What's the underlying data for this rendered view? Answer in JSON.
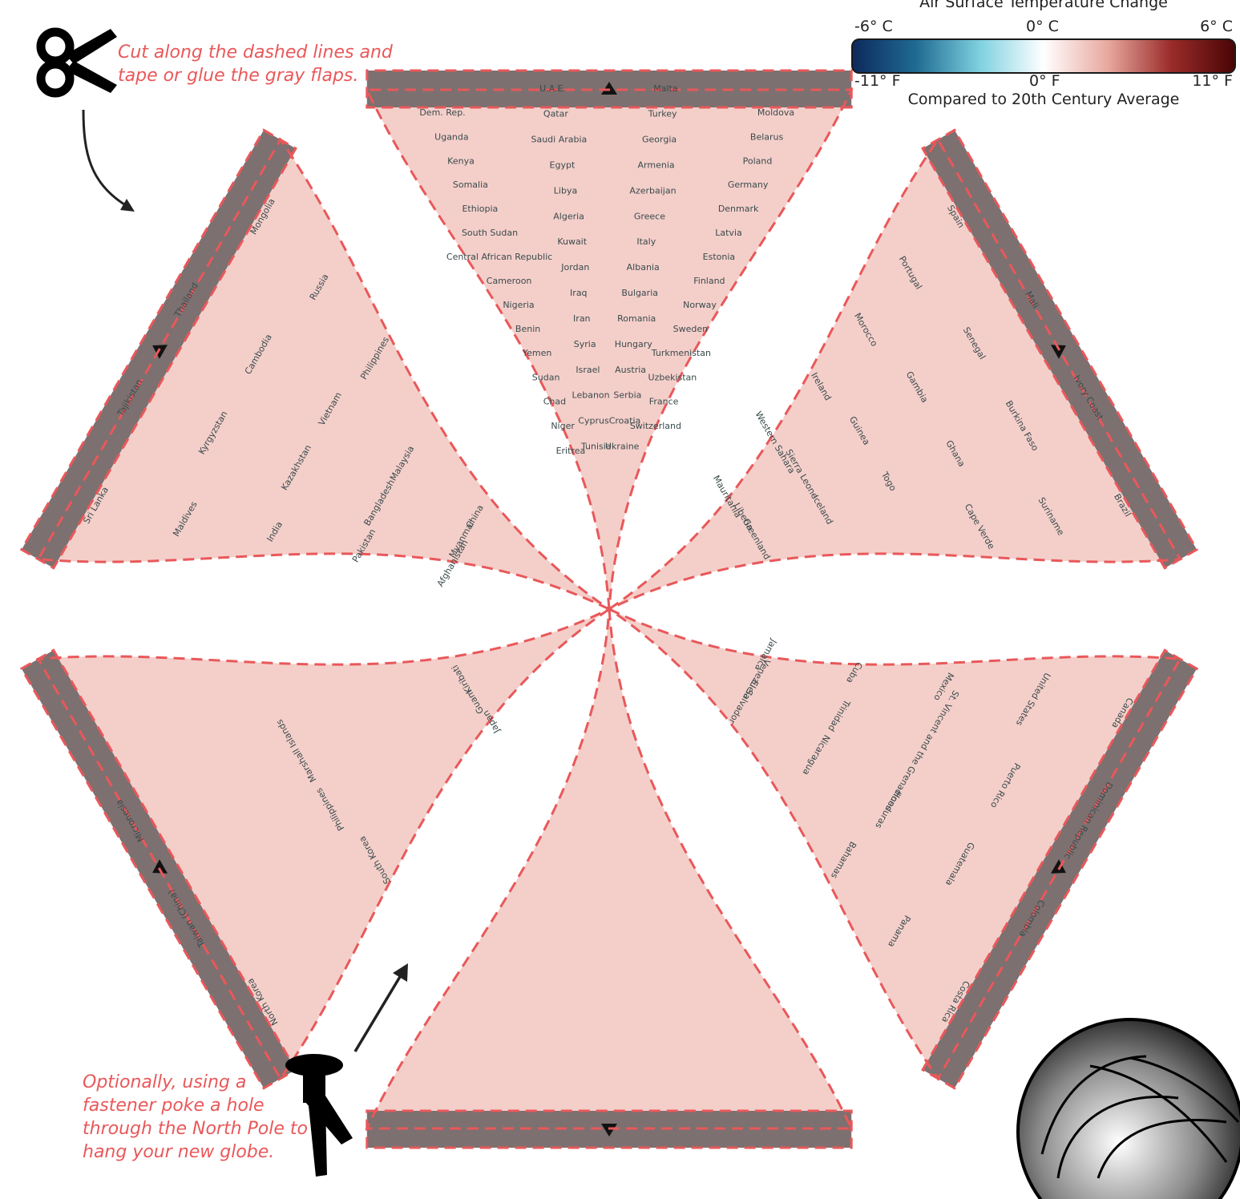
{
  "instructions": {
    "cut": "Cut along the dashed lines and tape or glue the gray flaps.",
    "hang": "Optionally, using a fastener poke a hole through the North Pole to hang your new globe."
  },
  "legend": {
    "title": "Air Surface Temperature Change",
    "celsius_min": "-6° C",
    "celsius_mid": "0° C",
    "celsius_max": "6° C",
    "fahrenheit_min": "-11° F",
    "fahrenheit_mid": "0° F",
    "fahrenheit_max": "11° F",
    "subtitle": "Compared to 20th Century Average",
    "gradient": [
      "#0d2a5c",
      "#1f6b92",
      "#7fd1e0",
      "#ffffff",
      "#e8a9a0",
      "#9a2c2a",
      "#4a0505"
    ]
  },
  "colors": {
    "cut_line": "#e9585a",
    "flap": "#7d7070",
    "hot": "#5a0707",
    "warm": "#c97a72",
    "mild": "#f4cfca",
    "cool": "#a8dde8"
  },
  "map_labels": {
    "africa": [
      "Dem. Rep.",
      "Uganda",
      "Kenya",
      "Somalia",
      "Ethiopia",
      "South Sudan",
      "Central African Republic",
      "Cameroon",
      "Nigeria",
      "Benin",
      "Yemen",
      "Sudan",
      "Chad",
      "Niger",
      "Eritrea",
      "U.A.E.",
      "Qatar",
      "Saudi Arabia",
      "Egypt",
      "Libya",
      "Algeria",
      "Kuwait",
      "Jordan",
      "Iraq",
      "Iran",
      "Syria",
      "Israel",
      "Lebanon",
      "Cyprus",
      "Tunisia",
      "Malta",
      "Turkey",
      "Georgia",
      "Armenia",
      "Azerbaijan",
      "Greece",
      "Italy",
      "Albania",
      "Bulgaria",
      "Romania",
      "Hungary",
      "Austria",
      "Serbia",
      "Croatia",
      "Ukraine",
      "Moldova",
      "Belarus",
      "Poland",
      "Germany",
      "Denmark",
      "Latvia",
      "Estonia",
      "Finland",
      "Norway",
      "Sweden",
      "Turkmenistan",
      "Uzbekistan",
      "France",
      "Switzerland"
    ],
    "asia": [
      "Sri Lanka",
      "Maldives",
      "India",
      "Pakistan",
      "Afghanistan",
      "Tajikistan",
      "Kyrgyzstan",
      "Kazakhstan",
      "Bangladesh",
      "Myanmar",
      "Thailand",
      "Cambodia",
      "Vietnam",
      "Malaysia",
      "China",
      "Mongolia",
      "Russia",
      "Philippines"
    ],
    "pacific_west": [
      "North Korea",
      "South Korea",
      "Japan",
      "Taiwan (China)",
      "Philippines",
      "Guam",
      "Micronesia",
      "Marshall Islands",
      "Kiribati"
    ],
    "americas": [
      "Canada",
      "United States",
      "Mexico",
      "Cuba",
      "Jamaica",
      "Dominican Republic",
      "Puerto Rico",
      "St. Vincent and the Grenadines",
      "Trinidad",
      "Venezuela",
      "Colombia",
      "Guatemala",
      "Honduras",
      "Nicaragua",
      "El Salvador",
      "Costa Rica",
      "Panama",
      "Bahamas"
    ],
    "atlantic": [
      "Spain",
      "Portugal",
      "Morocco",
      "Ireland",
      "Western Sahara",
      "Mauritania",
      "Mali",
      "Senegal",
      "Gambia",
      "Guinea",
      "Sierra Leone",
      "Liberia",
      "Ivory Coast",
      "Burkina Faso",
      "Ghana",
      "Togo",
      "Iceland",
      "Greenland",
      "Brazil",
      "Suriname",
      "Cape Verde"
    ]
  }
}
